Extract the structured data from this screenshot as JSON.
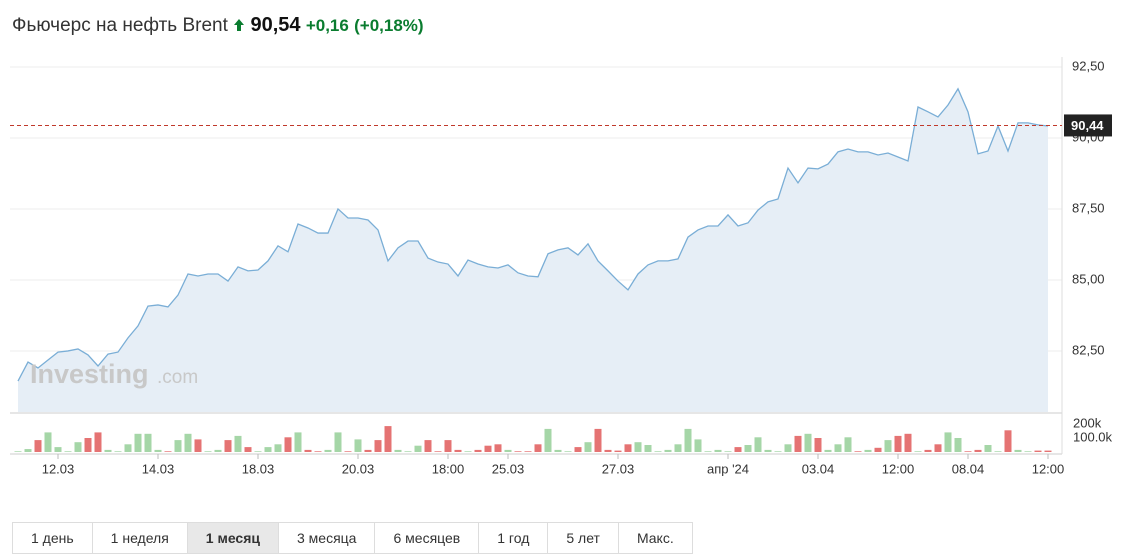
{
  "header": {
    "title": "Фьючерс на нефть Brent",
    "price": "90,54",
    "change": "+0,16",
    "change_pct": "(+0,18%)"
  },
  "watermark": {
    "brand": "Investing",
    "suffix": ".com"
  },
  "ranges": {
    "buttons": [
      "1 день",
      "1 неделя",
      "1 месяц",
      "3 месяца",
      "6 месяцев",
      "1 год",
      "5 лет",
      "Макс."
    ],
    "active": 2
  },
  "chart_data": {
    "type": "area",
    "color": "#7aaed6",
    "fill": "#e6eef6",
    "grid": true,
    "categories": [
      null,
      null,
      null,
      null,
      "12.03",
      null,
      null,
      null,
      null,
      null,
      null,
      null,
      null,
      null,
      "14.03",
      null,
      null,
      null,
      null,
      null,
      null,
      null,
      null,
      null,
      "18.03",
      null,
      null,
      null,
      null,
      null,
      null,
      null,
      null,
      null,
      "20.03",
      null,
      null,
      null,
      null,
      null,
      null,
      null,
      null,
      "18:00",
      null,
      null,
      null,
      null,
      null,
      "25.03",
      null,
      null,
      null,
      null,
      null,
      null,
      null,
      null,
      null,
      null,
      "27.03",
      null,
      null,
      null,
      null,
      null,
      null,
      null,
      null,
      null,
      null,
      "апр '24",
      null,
      null,
      null,
      null,
      null,
      null,
      null,
      null,
      "03.04",
      null,
      null,
      null,
      null,
      null,
      null,
      null,
      "12:00",
      null,
      null,
      null,
      null,
      null,
      null,
      "08.04",
      null,
      null,
      null,
      null,
      null,
      null,
      null,
      "12:00"
    ],
    "values": [
      81.44,
      82.11,
      81.9,
      82.18,
      82.46,
      82.5,
      82.57,
      82.36,
      81.97,
      82.39,
      82.46,
      82.96,
      83.38,
      84.08,
      84.12,
      84.05,
      84.47,
      85.21,
      85.14,
      85.21,
      85.21,
      84.96,
      85.46,
      85.32,
      85.35,
      85.67,
      86.2,
      85.99,
      86.97,
      86.83,
      86.65,
      86.65,
      87.5,
      87.18,
      87.18,
      87.11,
      86.76,
      85.67,
      86.13,
      86.37,
      86.37,
      85.77,
      85.63,
      85.56,
      85.14,
      85.7,
      85.56,
      85.46,
      85.42,
      85.53,
      85.25,
      85.14,
      85.11,
      85.92,
      86.06,
      86.13,
      85.88,
      86.27,
      85.67,
      85.32,
      84.96,
      84.65,
      85.21,
      85.53,
      85.67,
      85.67,
      85.74,
      86.51,
      86.76,
      86.9,
      86.9,
      87.29,
      86.9,
      87.01,
      87.46,
      87.75,
      87.85,
      88.94,
      88.42,
      88.94,
      88.91,
      89.08,
      89.51,
      89.61,
      89.51,
      89.51,
      89.4,
      89.47,
      89.33,
      89.19,
      91.09,
      90.92,
      90.74,
      91.16,
      91.73,
      90.92,
      89.44,
      89.54,
      90.42,
      89.54,
      90.53,
      90.53,
      90.46,
      90.42
    ],
    "ylim": [
      80.35,
      92.85
    ],
    "yticks": [
      {
        "value": 82.5,
        "label": "82,50"
      },
      {
        "value": 85,
        "label": "85,00"
      },
      {
        "value": 87.5,
        "label": "87,50"
      },
      {
        "value": 90,
        "label": "90,00"
      },
      {
        "value": 92.5,
        "label": "92,50"
      }
    ],
    "last_price": {
      "value": 90.44,
      "label": "90,44",
      "color": "#c0392b"
    },
    "volume": {
      "up_color": "#a5d6a7",
      "down_color": "#e57373",
      "ylim": [
        0,
        260000
      ],
      "yticks": [
        {
          "value": 100000,
          "label": "100.0k"
        },
        {
          "value": 200000,
          "label": "200k"
        }
      ],
      "values": [
        5000,
        21000,
        85000,
        140000,
        35000,
        5000,
        70000,
        100000,
        140000,
        15000,
        5000,
        55000,
        130000,
        130000,
        15000,
        5000,
        85000,
        130000,
        90000,
        5000,
        15000,
        85000,
        115000,
        35000,
        5000,
        35000,
        55000,
        105000,
        140000,
        15000,
        5000,
        15000,
        140000,
        5000,
        90000,
        15000,
        85000,
        185000,
        15000,
        5000,
        45000,
        85000,
        5000,
        85000,
        15000,
        5000,
        15000,
        45000,
        55000,
        15000,
        5000,
        5000,
        55000,
        165000,
        15000,
        5000,
        35000,
        70000,
        165000,
        15000,
        10000,
        55000,
        70000,
        50000,
        5000,
        15000,
        55000,
        165000,
        90000,
        5000,
        15000,
        5000,
        35000,
        50000,
        105000,
        15000,
        5000,
        55000,
        115000,
        130000,
        100000,
        15000,
        55000,
        105000,
        5000,
        15000,
        30000,
        85000,
        115000,
        130000,
        5000,
        15000,
        55000,
        140000,
        100000,
        5000,
        15000,
        50000,
        5000,
        155000,
        15000,
        5000,
        10000,
        10000
      ]
    }
  }
}
